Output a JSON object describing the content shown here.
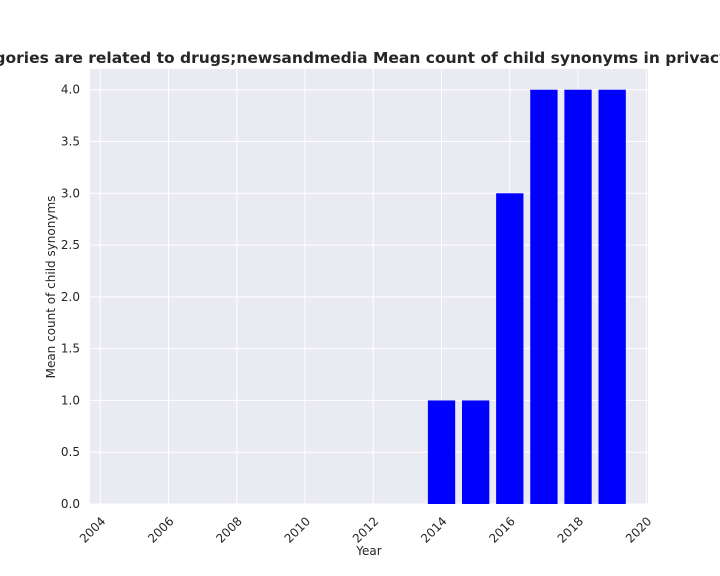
{
  "chart_data": {
    "type": "bar",
    "title": "All categories are related to drugs;newsandmedia Mean count of child synonyms in privacy policies",
    "xlabel": "Year",
    "ylabel": "Mean count of child synonyms",
    "x": [
      2014,
      2015,
      2016,
      2017,
      2018,
      2019
    ],
    "values": [
      1.0,
      1.0,
      3.0,
      4.0,
      4.0,
      4.0
    ],
    "xlim": [
      2003.7,
      2020.05
    ],
    "ylim": [
      0,
      4.2
    ],
    "xticks": [
      "2004",
      "2006",
      "2008",
      "2010",
      "2012",
      "2014",
      "2016",
      "2018",
      "2020"
    ],
    "yticks": [
      "0.0",
      "0.5",
      "1.0",
      "1.5",
      "2.0",
      "2.5",
      "3.0",
      "3.5",
      "4.0"
    ],
    "bar_color": "#0000ff",
    "background": "#eaeaf2",
    "grid": true,
    "legend": "none"
  }
}
